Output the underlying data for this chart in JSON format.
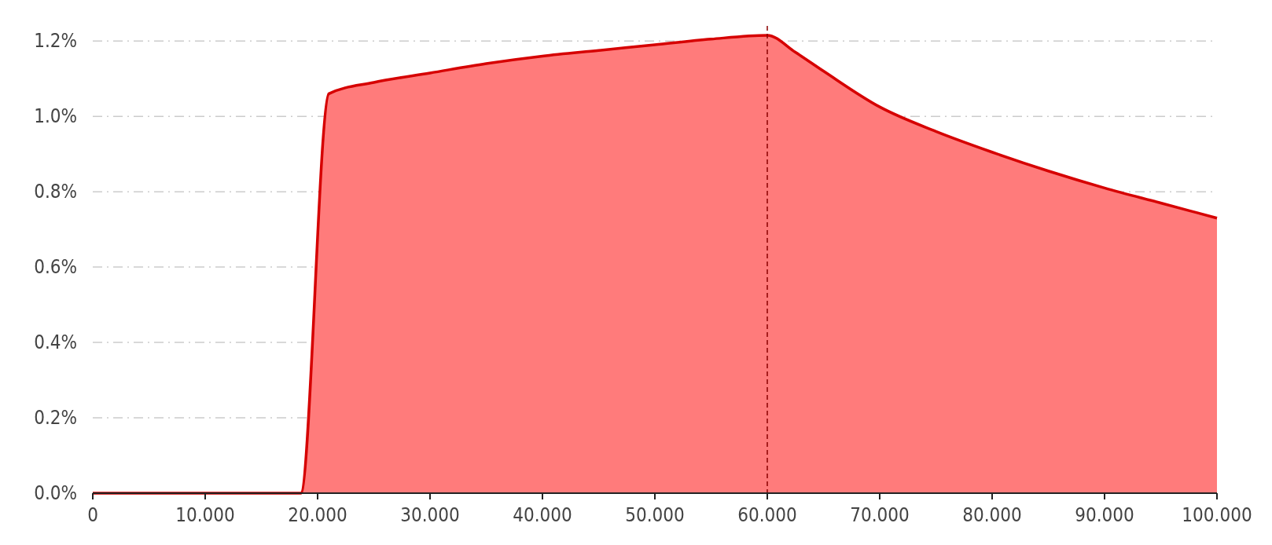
{
  "chart_data": {
    "type": "area",
    "x": [
      0,
      18.5,
      21,
      25,
      30,
      35,
      40,
      45,
      50,
      55,
      60,
      62.5,
      65,
      70,
      75,
      80,
      85,
      90,
      95,
      100
    ],
    "series": [
      {
        "color": "#ff7b7b",
        "values": [
          0,
          0,
          1.06,
          1.09,
          1.115,
          1.14,
          1.16,
          1.175,
          1.19,
          1.205,
          1.215,
          1.17,
          1.12,
          1.025,
          0.96,
          0.905,
          0.855,
          0.81,
          0.77,
          0.73
        ]
      }
    ],
    "xlim": [
      0,
      100
    ],
    "xticks": [
      0,
      {
        "value": 10,
        "label": "10.000"
      },
      {
        "value": 20,
        "label": "20.000"
      },
      {
        "value": 30,
        "label": "30.000"
      },
      {
        "value": 40,
        "label": "40.000"
      },
      {
        "value": 50,
        "label": "50.000"
      },
      {
        "value": 60,
        "label": "60.000"
      },
      {
        "value": 70,
        "label": "70.000"
      },
      {
        "value": 80,
        "label": "80.000"
      },
      {
        "value": 90,
        "label": "90.000"
      },
      {
        "value": 100,
        "label": "100.000"
      }
    ],
    "ylim": [
      0,
      1.24
    ],
    "yticks": [
      {
        "value": 0,
        "label": "0.0%"
      },
      {
        "value": 0.2,
        "label": "0.2%"
      },
      {
        "value": 0.4,
        "label": "0.4%"
      },
      {
        "value": 0.6,
        "label": "0.6%"
      },
      {
        "value": 0.8,
        "label": "0.8%"
      },
      {
        "value": 1.0,
        "label": "1.0%"
      },
      {
        "value": 1.2,
        "label": "1.2%"
      }
    ],
    "grid": "y",
    "ref_lines": [
      {
        "axis": "x",
        "value": 60,
        "line_style": "dashed"
      }
    ]
  }
}
